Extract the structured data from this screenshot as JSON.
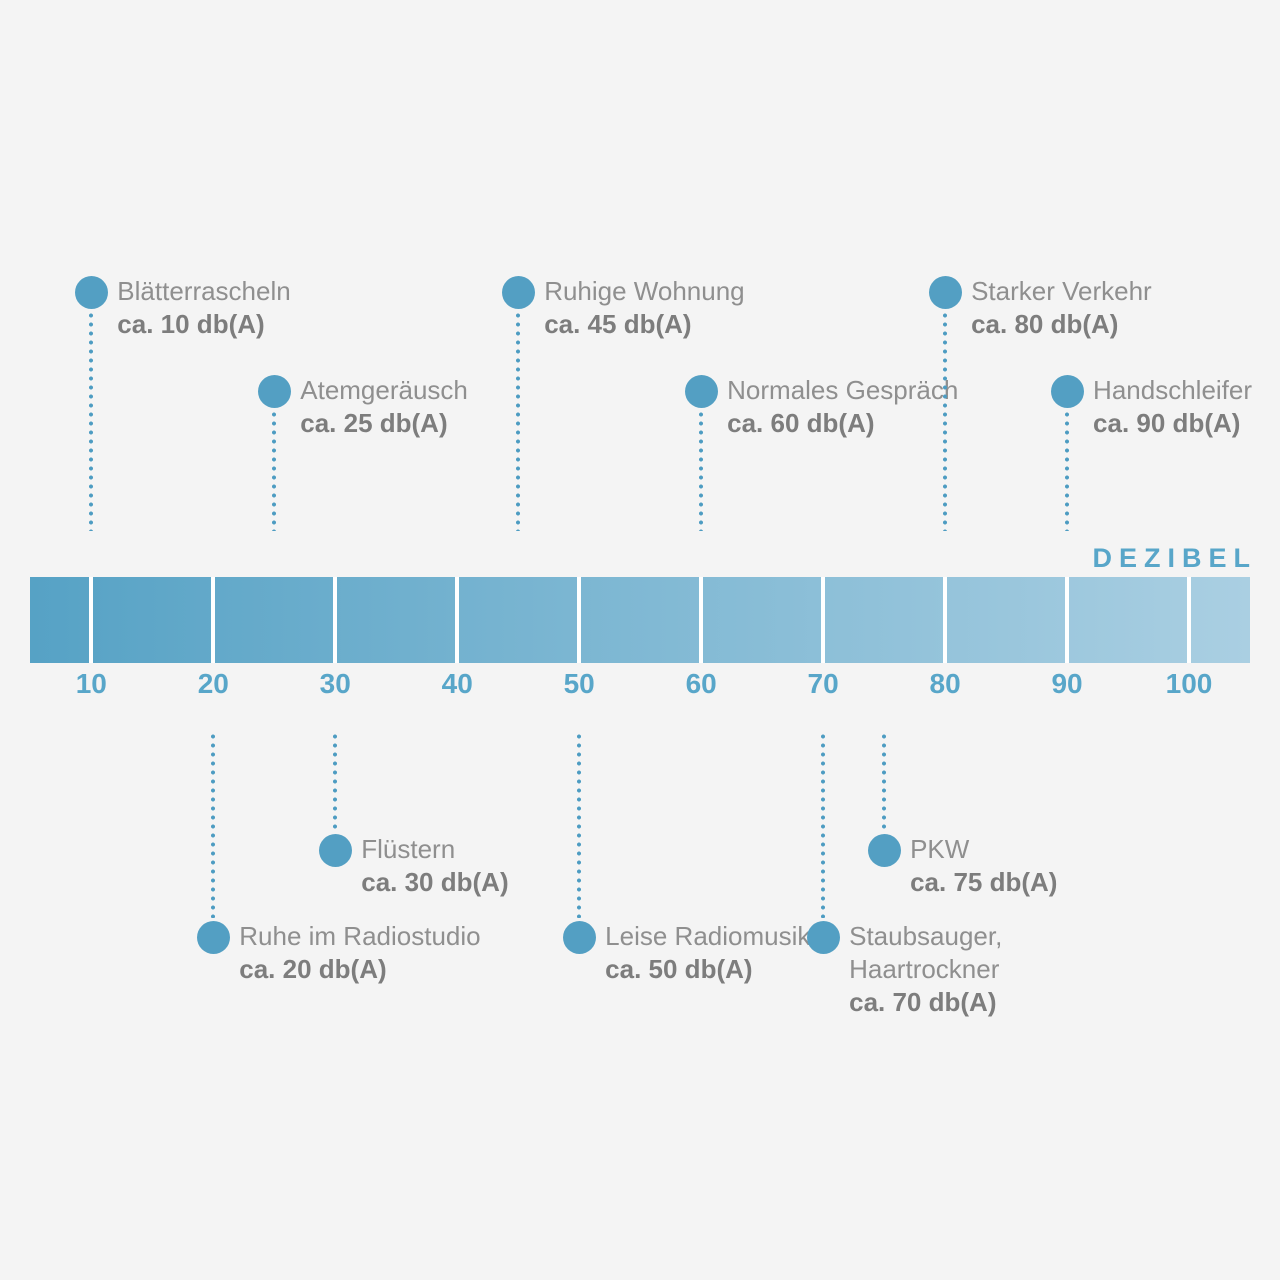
{
  "colors": {
    "background": "#f4f4f4",
    "dot_blue": "#539fc3",
    "dotted_line_blue": "#4d9cc2",
    "bar_gradient_start": "#56a2c5",
    "bar_gradient_end": "#aacfe2",
    "tick_separator": "#ffffff",
    "axis_accent_blue": "#58a6c9",
    "label_gray": "#8f8f8f",
    "value_gray": "#7d7d7d"
  },
  "chart_data": {
    "type": "scatter",
    "title": "DEZIBEL",
    "xlabel": "db(A)",
    "x_axis": {
      "range": [
        5,
        105
      ],
      "ticks": [
        10,
        20,
        30,
        40,
        50,
        60,
        70,
        80,
        90,
        100
      ]
    },
    "legend": "none",
    "grid": false,
    "points": [
      {
        "db": 10,
        "label_lines": [
          "Blätterrascheln"
        ],
        "value_label": "ca. 10 db(A)",
        "side": "top",
        "row": 1
      },
      {
        "db": 25,
        "label_lines": [
          "Atemgeräusch"
        ],
        "value_label": "ca. 25 db(A)",
        "side": "top",
        "row": 2
      },
      {
        "db": 45,
        "label_lines": [
          "Ruhige Wohnung"
        ],
        "value_label": "ca. 45 db(A)",
        "side": "top",
        "row": 1
      },
      {
        "db": 60,
        "label_lines": [
          "Normales Gespräch"
        ],
        "value_label": "ca. 60 db(A)",
        "side": "top",
        "row": 2
      },
      {
        "db": 80,
        "label_lines": [
          "Starker Verkehr"
        ],
        "value_label": "ca. 80 db(A)",
        "side": "top",
        "row": 1
      },
      {
        "db": 90,
        "label_lines": [
          "Handschleifer"
        ],
        "value_label": "ca. 90 db(A)",
        "side": "top",
        "row": 2
      },
      {
        "db": 20,
        "label_lines": [
          "Ruhe im Radiostudio"
        ],
        "value_label": "ca. 20 db(A)",
        "side": "bottom",
        "row": 2
      },
      {
        "db": 30,
        "label_lines": [
          "Flüstern"
        ],
        "value_label": "ca. 30 db(A)",
        "side": "bottom",
        "row": 1
      },
      {
        "db": 50,
        "label_lines": [
          "Leise Radiomusik"
        ],
        "value_label": "ca. 50 db(A)",
        "side": "bottom",
        "row": 2
      },
      {
        "db": 70,
        "label_lines": [
          "Staubsauger,",
          "Haartrockner"
        ],
        "value_label": "ca. 70 db(A)",
        "side": "bottom",
        "row": 2
      },
      {
        "db": 75,
        "label_lines": [
          "PKW"
        ],
        "value_label": "ca. 75 db(A)",
        "side": "bottom",
        "row": 1
      }
    ]
  }
}
